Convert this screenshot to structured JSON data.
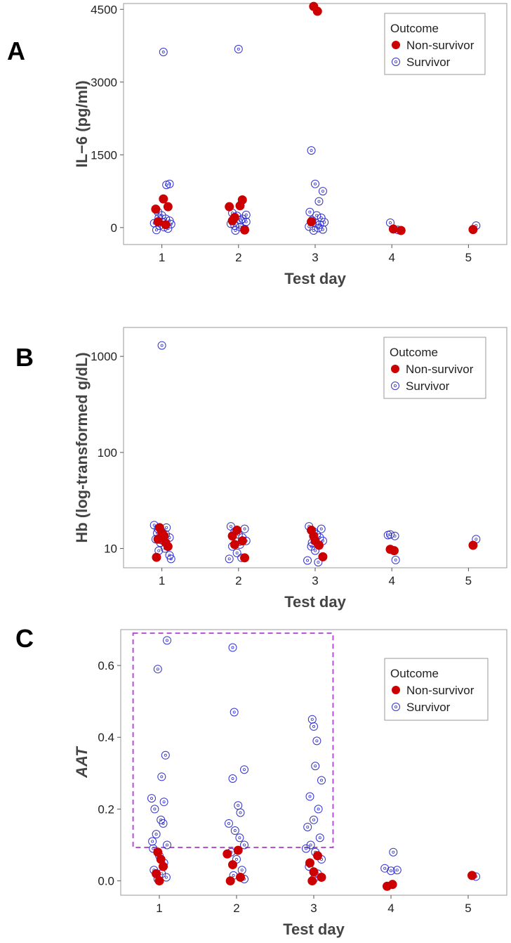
{
  "colors": {
    "non_survivor": "#cc0000",
    "survivor": "#3333cc",
    "frame": "#999999",
    "highlight_box": "#b44fd6"
  },
  "chart_data": [
    {
      "panel": "A",
      "type": "scatter",
      "xlabel": "Test day",
      "ylabel": "IL−6 (pg/ml)",
      "x_ticks": [
        "1",
        "2",
        "3",
        "4",
        "5"
      ],
      "y_ticks": [
        "0",
        "1500",
        "3000",
        "4500"
      ],
      "ylim": [
        -350,
        4620
      ],
      "xlim": [
        0.5,
        5.5
      ],
      "scale": "linear",
      "legend": {
        "title": "Outcome",
        "placement": "top-right",
        "entries": [
          "Non-survivor",
          "Survivor"
        ]
      },
      "series": [
        {
          "name": "Non-survivor",
          "marker": "filled-circle",
          "points": [
            [
              0.92,
              380
            ],
            [
              1.02,
              590
            ],
            [
              1.08,
              430
            ],
            [
              0.95,
              120
            ],
            [
              1.05,
              60
            ],
            [
              1.88,
              430
            ],
            [
              1.95,
              210
            ],
            [
              2.02,
              450
            ],
            [
              2.05,
              570
            ],
            [
              2.08,
              -50
            ],
            [
              1.92,
              140
            ],
            [
              2.98,
              4560
            ],
            [
              3.03,
              4460
            ],
            [
              2.95,
              120
            ],
            [
              4.02,
              -30
            ],
            [
              4.12,
              -60
            ],
            [
              5.06,
              -40
            ]
          ]
        },
        {
          "name": "Survivor",
          "marker": "open-circle",
          "points": [
            [
              1.02,
              3620
            ],
            [
              1.06,
              880
            ],
            [
              1.1,
              900
            ],
            [
              0.95,
              320
            ],
            [
              1.0,
              250
            ],
            [
              1.05,
              180
            ],
            [
              1.1,
              140
            ],
            [
              0.9,
              90
            ],
            [
              0.97,
              40
            ],
            [
              1.03,
              10
            ],
            [
              1.08,
              -20
            ],
            [
              0.93,
              -50
            ],
            [
              1.12,
              70
            ],
            [
              1.0,
              120
            ],
            [
              0.96,
              200
            ],
            [
              2.0,
              3680
            ],
            [
              1.92,
              300
            ],
            [
              1.98,
              240
            ],
            [
              2.05,
              180
            ],
            [
              2.1,
              120
            ],
            [
              1.9,
              80
            ],
            [
              1.95,
              40
            ],
            [
              2.02,
              10
            ],
            [
              2.08,
              -30
            ],
            [
              1.96,
              -60
            ],
            [
              2.1,
              260
            ],
            [
              2.03,
              150
            ],
            [
              2.95,
              1590
            ],
            [
              3.0,
              900
            ],
            [
              3.05,
              540
            ],
            [
              3.1,
              750
            ],
            [
              2.93,
              320
            ],
            [
              3.02,
              250
            ],
            [
              3.08,
              200
            ],
            [
              2.96,
              150
            ],
            [
              3.0,
              100
            ],
            [
              3.06,
              60
            ],
            [
              2.92,
              20
            ],
            [
              3.04,
              -10
            ],
            [
              3.1,
              -40
            ],
            [
              2.98,
              -60
            ],
            [
              3.12,
              110
            ],
            [
              3.98,
              100
            ],
            [
              4.08,
              -50
            ],
            [
              5.1,
              40
            ]
          ]
        }
      ]
    },
    {
      "panel": "B",
      "type": "scatter",
      "xlabel": "Test day",
      "ylabel": "Hb (log-transformed g/dL)",
      "x_ticks": [
        "1",
        "2",
        "3",
        "4",
        "5"
      ],
      "y_ticks": [
        "10",
        "100",
        "1000"
      ],
      "ylim": [
        6.3,
        2000
      ],
      "xlim": [
        0.5,
        5.5
      ],
      "scale": "log",
      "legend": {
        "title": "Outcome",
        "placement": "top-right",
        "entries": [
          "Non-survivor",
          "Survivor"
        ]
      },
      "series": [
        {
          "name": "Non-survivor",
          "marker": "filled-circle",
          "points": [
            [
              0.93,
              8.1
            ],
            [
              0.97,
              16.5
            ],
            [
              1.03,
              13.5
            ],
            [
              1.08,
              10.5
            ],
            [
              0.95,
              12.5
            ],
            [
              1.0,
              14.5
            ],
            [
              1.05,
              11.5
            ],
            [
              1.92,
              13.5
            ],
            [
              1.98,
              15.5
            ],
            [
              2.05,
              12.0
            ],
            [
              2.08,
              8.0
            ],
            [
              1.95,
              11.0
            ],
            [
              2.95,
              15.5
            ],
            [
              3.0,
              12.0
            ],
            [
              3.05,
              10.8
            ],
            [
              3.1,
              8.2
            ],
            [
              2.98,
              13.5
            ],
            [
              3.98,
              9.8
            ],
            [
              4.03,
              9.5
            ],
            [
              5.06,
              10.8
            ]
          ]
        },
        {
          "name": "Survivor",
          "marker": "open-circle",
          "points": [
            [
              1.0,
              1300
            ],
            [
              0.9,
              17.5
            ],
            [
              0.95,
              16.0
            ],
            [
              1.0,
              15.0
            ],
            [
              1.05,
              14.0
            ],
            [
              1.1,
              13.0
            ],
            [
              0.92,
              12.5
            ],
            [
              0.98,
              11.5
            ],
            [
              1.04,
              10.0
            ],
            [
              1.1,
              8.5
            ],
            [
              1.12,
              7.8
            ],
            [
              0.96,
              9.5
            ],
            [
              1.06,
              16.5
            ],
            [
              1.02,
              12.0
            ],
            [
              0.94,
              14.5
            ],
            [
              1.9,
              17.0
            ],
            [
              1.95,
              15.0
            ],
            [
              2.0,
              14.0
            ],
            [
              2.05,
              13.0
            ],
            [
              2.1,
              12.0
            ],
            [
              1.92,
              10.5
            ],
            [
              1.98,
              9.0
            ],
            [
              2.04,
              8.0
            ],
            [
              1.88,
              7.8
            ],
            [
              2.08,
              16.0
            ],
            [
              2.02,
              11.0
            ],
            [
              2.92,
              17.0
            ],
            [
              2.98,
              15.0
            ],
            [
              3.02,
              14.0
            ],
            [
              3.06,
              13.0
            ],
            [
              3.1,
              12.0
            ],
            [
              2.95,
              10.5
            ],
            [
              3.0,
              9.5
            ],
            [
              2.9,
              7.5
            ],
            [
              3.04,
              7.2
            ],
            [
              3.08,
              16.0
            ],
            [
              2.96,
              11.5
            ],
            [
              3.95,
              13.8
            ],
            [
              3.98,
              14.0
            ],
            [
              4.04,
              13.5
            ],
            [
              4.05,
              7.6
            ],
            [
              5.1,
              12.5
            ]
          ]
        }
      ]
    },
    {
      "panel": "C",
      "type": "scatter",
      "xlabel": "Test day",
      "ylabel": "AAT",
      "x_ticks": [
        "1",
        "2",
        "3",
        "4",
        "5"
      ],
      "y_ticks": [
        "0.0",
        "0.2",
        "0.4",
        "0.6"
      ],
      "ylim": [
        -0.04,
        0.7
      ],
      "xlim": [
        0.5,
        5.5
      ],
      "scale": "linear",
      "legend": {
        "title": "Outcome",
        "placement": "top-right",
        "entries": [
          "Non-survivor",
          "Survivor"
        ]
      },
      "highlight_box": {
        "x": [
          0.66,
          3.25
        ],
        "y": [
          0.093,
          0.69
        ],
        "style": "dashed"
      },
      "series": [
        {
          "name": "Non-survivor",
          "marker": "filled-circle",
          "points": [
            [
              0.98,
              0.08
            ],
            [
              1.02,
              0.06
            ],
            [
              1.05,
              0.04
            ],
            [
              0.96,
              0.02
            ],
            [
              1.0,
              0.0
            ],
            [
              1.88,
              0.075
            ],
            [
              1.95,
              0.045
            ],
            [
              2.02,
              0.085
            ],
            [
              2.05,
              0.01
            ],
            [
              1.92,
              0.0
            ],
            [
              2.95,
              0.05
            ],
            [
              3.0,
              0.025
            ],
            [
              3.05,
              0.07
            ],
            [
              3.1,
              0.01
            ],
            [
              2.98,
              0.0
            ],
            [
              3.95,
              -0.015
            ],
            [
              4.02,
              -0.01
            ],
            [
              5.05,
              0.015
            ]
          ]
        },
        {
          "name": "Survivor",
          "marker": "open-circle",
          "points": [
            [
              1.1,
              0.67
            ],
            [
              0.98,
              0.59
            ],
            [
              1.08,
              0.35
            ],
            [
              1.03,
              0.29
            ],
            [
              0.9,
              0.23
            ],
            [
              1.06,
              0.22
            ],
            [
              0.94,
              0.2
            ],
            [
              1.02,
              0.17
            ],
            [
              1.05,
              0.16
            ],
            [
              0.96,
              0.13
            ],
            [
              1.1,
              0.1
            ],
            [
              0.92,
              0.09
            ],
            [
              1.0,
              0.07
            ],
            [
              1.06,
              0.05
            ],
            [
              0.93,
              0.03
            ],
            [
              1.03,
              0.02
            ],
            [
              0.98,
              0.005
            ],
            [
              1.09,
              0.01
            ],
            [
              0.91,
              0.11
            ],
            [
              1.95,
              0.65
            ],
            [
              1.97,
              0.47
            ],
            [
              2.1,
              0.31
            ],
            [
              1.95,
              0.285
            ],
            [
              2.02,
              0.21
            ],
            [
              2.05,
              0.19
            ],
            [
              1.9,
              0.16
            ],
            [
              1.98,
              0.14
            ],
            [
              2.04,
              0.12
            ],
            [
              2.1,
              0.1
            ],
            [
              1.93,
              0.08
            ],
            [
              2.0,
              0.06
            ],
            [
              2.07,
              0.03
            ],
            [
              1.96,
              0.015
            ],
            [
              2.1,
              0.005
            ],
            [
              2.98,
              0.45
            ],
            [
              3.0,
              0.43
            ],
            [
              3.04,
              0.39
            ],
            [
              3.1,
              0.28
            ],
            [
              2.95,
              0.235
            ],
            [
              3.02,
              0.32
            ],
            [
              3.06,
              0.2
            ],
            [
              3.0,
              0.17
            ],
            [
              2.92,
              0.15
            ],
            [
              3.08,
              0.12
            ],
            [
              2.96,
              0.1
            ],
            [
              3.02,
              0.08
            ],
            [
              3.1,
              0.06
            ],
            [
              2.94,
              0.04
            ],
            [
              3.05,
              0.02
            ],
            [
              3.0,
              0.005
            ],
            [
              2.9,
              0.09
            ],
            [
              3.92,
              0.035
            ],
            [
              4.0,
              0.028
            ],
            [
              4.03,
              0.08
            ],
            [
              4.08,
              0.03
            ],
            [
              5.1,
              0.012
            ]
          ]
        }
      ]
    }
  ]
}
